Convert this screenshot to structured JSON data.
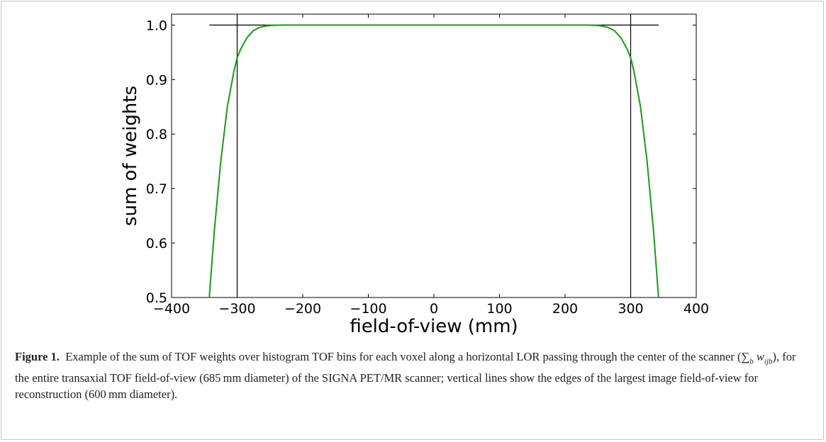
{
  "chart_data": {
    "type": "line",
    "title": "",
    "xlabel": "field-of-view (mm)",
    "ylabel": "sum of weights",
    "xlim": [
      -400,
      400
    ],
    "ylim": [
      0.5,
      1.02
    ],
    "xticks": [
      -400,
      -300,
      -200,
      -100,
      0,
      100,
      200,
      300,
      400
    ],
    "yticks": [
      0.5,
      0.6,
      0.7,
      0.8,
      0.9,
      1.0
    ],
    "xtick_labels": [
      "−400",
      "−300",
      "−200",
      "−100",
      "0",
      "100",
      "200",
      "300",
      "400"
    ],
    "ytick_labels": [
      "0.5",
      "0.6",
      "0.7",
      "0.8",
      "0.9",
      "1.0"
    ],
    "grid": false,
    "series": [
      {
        "color": "#1a9a1a",
        "x": [
          -342.5,
          -335,
          -325,
          -315,
          -305,
          -300,
          -295,
          -285,
          -275,
          -265,
          -255,
          -245,
          -230,
          0,
          230,
          245,
          255,
          265,
          275,
          285,
          295,
          300,
          305,
          315,
          325,
          335,
          342.5
        ],
        "y": [
          0.5,
          0.62,
          0.75,
          0.85,
          0.915,
          0.94,
          0.955,
          0.977,
          0.99,
          0.996,
          0.9985,
          0.9995,
          1.0,
          1.0,
          1.0,
          0.9995,
          0.9985,
          0.996,
          0.99,
          0.977,
          0.955,
          0.94,
          0.915,
          0.85,
          0.75,
          0.62,
          0.5
        ]
      }
    ],
    "reference_lines": {
      "color": "#000000",
      "horizontal": [
        {
          "y": 1.0,
          "x_from": -342.5,
          "x_to": 342.5
        }
      ],
      "vertical": [
        {
          "x": -300
        },
        {
          "x": 300
        }
      ]
    }
  },
  "caption": {
    "label": "Figure 1.",
    "text_before": "Example of the sum of TOF weights over histogram TOF bins for each voxel along a horizontal LOR passing through the center of the scanner (",
    "sum_symbol": "∑",
    "sum_sub": "b",
    "w": "w",
    "w_sub": "ijb",
    "text_after": "), for the entire transaxial TOF field-of-view (685 mm diameter) of the SIGNA PET/MR scanner; vertical lines show the edges of the largest image field-of-view for reconstruction (600 mm diameter)."
  }
}
